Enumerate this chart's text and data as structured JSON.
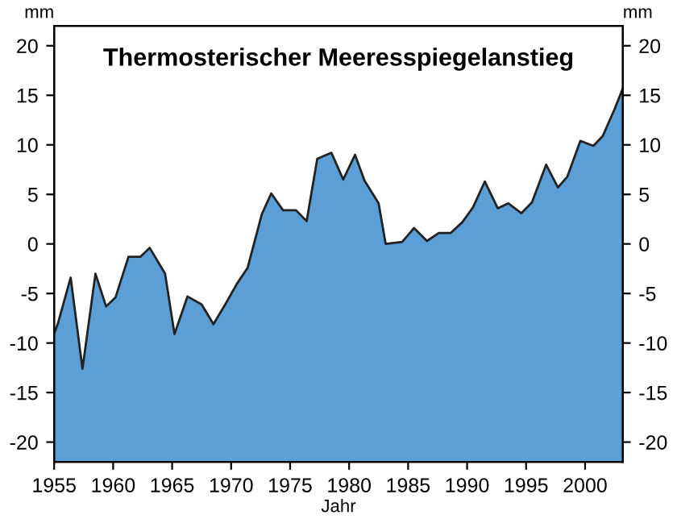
{
  "chart_data": {
    "type": "area",
    "title": "Thermosterischer Meeresspiegelanstieg",
    "xlabel": "Jahr",
    "ylabel": "mm",
    "y2label": "mm",
    "x": [
      1955.0,
      1955.3,
      1956.4,
      1957.4,
      1958.5,
      1959.4,
      1960.2,
      1961.3,
      1962.3,
      1963.1,
      1964.4,
      1965.2,
      1966.3,
      1967.5,
      1968.5,
      1969.6,
      1970.5,
      1971.4,
      1972.6,
      1973.4,
      1974.4,
      1975.5,
      1976.4,
      1977.3,
      1978.5,
      1979.5,
      1980.5,
      1981.3,
      1982.5,
      1983.1,
      1984.5,
      1985.5,
      1986.6,
      1987.6,
      1988.6,
      1989.6,
      1990.5,
      1991.5,
      1992.6,
      1993.5,
      1994.6,
      1995.5,
      1996.7,
      1997.7,
      1998.5,
      1999.6,
      2000.7,
      2001.5,
      2002.5,
      2003.2
    ],
    "series": [
      {
        "color": "#5c9fd6",
        "values": [
          -9.0,
          -8.1,
          -3.4,
          -12.6,
          -3.0,
          -6.3,
          -5.4,
          -1.3,
          -1.3,
          -0.4,
          -3.0,
          -9.1,
          -5.3,
          -6.1,
          -8.1,
          -5.9,
          -4.0,
          -2.4,
          3.0,
          5.1,
          3.4,
          3.4,
          2.3,
          8.6,
          9.2,
          6.5,
          9.0,
          6.4,
          4.1,
          0.0,
          0.2,
          1.6,
          0.3,
          1.1,
          1.1,
          2.2,
          3.7,
          6.3,
          3.6,
          4.1,
          3.1,
          4.2,
          8.0,
          5.7,
          6.8,
          10.4,
          9.9,
          10.9,
          13.6,
          15.7
        ]
      }
    ],
    "xlim": [
      1955,
      2003.2
    ],
    "xticks": [
      1955,
      1960,
      1965,
      1970,
      1975,
      1980,
      1985,
      1990,
      1995,
      2000
    ],
    "ylim": [
      -22,
      22
    ],
    "yticks": [
      -20,
      -15,
      -10,
      -5,
      0,
      5,
      10,
      15,
      20
    ],
    "y2lim": [
      -22,
      22
    ],
    "y2ticks": [
      -20,
      -15,
      -10,
      -5,
      0,
      5,
      10,
      15,
      20
    ],
    "grid": false,
    "legend": false
  }
}
